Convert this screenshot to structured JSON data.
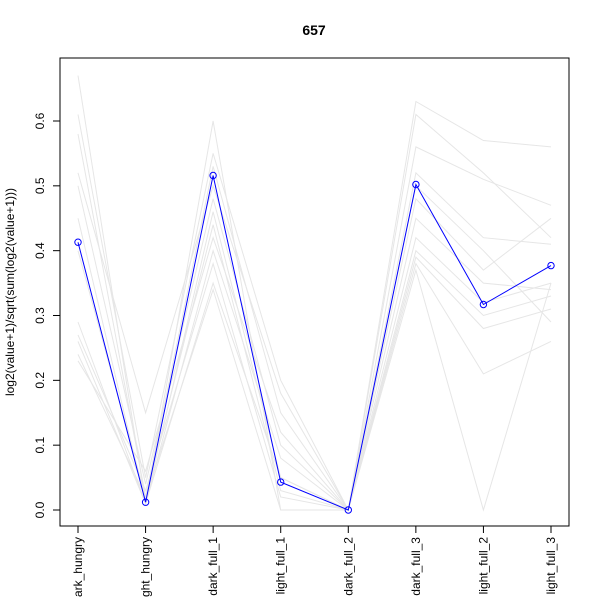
{
  "chart_data": {
    "type": "line",
    "title": "657",
    "xlabel": "",
    "ylabel": "log2(value+1)/sqrt(sum(log2(value+1)))",
    "categories": [
      "dark_hungry",
      "light_hungry",
      "dark_full_1",
      "light_full_1",
      "dark_full_2",
      "dark_full_3",
      "light_full_2",
      "light_full_3"
    ],
    "category_labels_visible": [
      "ark_hungry",
      "ght_hungry",
      "dark_full_1",
      "light_full_1",
      "dark_full_2",
      "dark_full_3",
      "light_full_2",
      "light_full_3"
    ],
    "yticks": [
      "0.0",
      "0.1",
      "0.2",
      "0.3",
      "0.4",
      "0.5",
      "0.6"
    ],
    "ylim": [
      -0.025,
      0.7
    ],
    "grid": false,
    "highlight_series": {
      "values": [
        0.413,
        0.012,
        0.516,
        0.043,
        0.0,
        0.502,
        0.317,
        0.377
      ],
      "color": "#0000ff"
    },
    "background_series_color": "#e6e6e6",
    "background_series": [
      [
        0.67,
        0.01,
        0.6,
        0.0,
        0.0,
        0.63,
        0.57,
        0.56
      ],
      [
        0.61,
        0.05,
        0.55,
        0.2,
        0.0,
        0.61,
        0.52,
        0.42
      ],
      [
        0.58,
        0.02,
        0.53,
        0.15,
        0.0,
        0.56,
        0.51,
        0.47
      ],
      [
        0.52,
        0.15,
        0.5,
        0.18,
        0.0,
        0.52,
        0.42,
        0.41
      ],
      [
        0.5,
        0.04,
        0.48,
        0.1,
        0.0,
        0.5,
        0.4,
        0.29
      ],
      [
        0.45,
        0.01,
        0.46,
        0.05,
        0.0,
        0.48,
        0.37,
        0.45
      ],
      [
        0.4,
        0.02,
        0.44,
        0.03,
        0.0,
        0.45,
        0.35,
        0.34
      ],
      [
        0.29,
        0.01,
        0.4,
        0.08,
        0.0,
        0.42,
        0.32,
        0.35
      ],
      [
        0.27,
        0.03,
        0.38,
        0.02,
        0.0,
        0.39,
        0.28,
        0.31
      ],
      [
        0.26,
        0.01,
        0.35,
        0.05,
        0.0,
        0.38,
        0.21,
        0.26
      ],
      [
        0.24,
        0.02,
        0.34,
        0.0,
        0.0,
        0.37,
        0.0,
        0.35
      ],
      [
        0.23,
        0.06,
        0.42,
        0.12,
        0.0,
        0.4,
        0.3,
        0.33
      ]
    ]
  }
}
